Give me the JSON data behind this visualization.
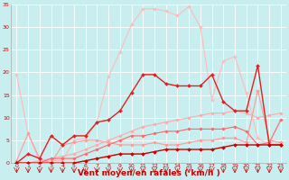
{
  "xlabel": "Vent moyen/en rafales ( km/h )",
  "bg_color": "#c8eef0",
  "grid_color": "#ffffff",
  "xlim": [
    -0.5,
    23.5
  ],
  "ylim": [
    0,
    35
  ],
  "yticks": [
    0,
    5,
    10,
    15,
    20,
    25,
    30,
    35
  ],
  "xticks": [
    0,
    1,
    2,
    3,
    4,
    5,
    6,
    7,
    8,
    9,
    10,
    11,
    12,
    13,
    14,
    15,
    16,
    17,
    18,
    19,
    20,
    21,
    22,
    23
  ],
  "tick_label_color": "#cc0000",
  "xlabel_color": "#cc0000",
  "tick_fontsize": 4.5,
  "xlabel_fontsize": 6.5,
  "lines": [
    {
      "x": [
        0,
        1,
        2,
        3,
        4,
        5,
        6,
        7,
        8,
        9,
        10,
        11,
        12,
        13,
        14,
        15,
        16,
        17,
        18,
        19,
        20,
        21,
        22,
        23
      ],
      "y": [
        19.5,
        6.5,
        0.5,
        0.5,
        0.5,
        5.0,
        5.5,
        9.0,
        19.0,
        24.5,
        30.5,
        34.0,
        34.0,
        33.5,
        32.5,
        34.5,
        30.0,
        14.0,
        22.5,
        23.5,
        15.5,
        5.5,
        4.0,
        4.5
      ],
      "color": "#ffbbbb",
      "lw": 0.8,
      "marker": "D",
      "ms": 1.8
    },
    {
      "x": [
        0,
        1,
        2,
        3,
        4,
        5,
        6,
        7,
        8,
        9,
        10,
        11,
        12,
        13,
        14,
        15,
        16,
        17,
        18,
        19,
        20,
        21,
        22,
        23
      ],
      "y": [
        0.5,
        6.5,
        1.0,
        0.0,
        4.0,
        4.5,
        5.0,
        5.0,
        4.5,
        4.0,
        4.0,
        4.0,
        4.5,
        4.0,
        4.0,
        4.5,
        5.0,
        5.0,
        5.5,
        5.5,
        4.5,
        16.0,
        5.0,
        4.5
      ],
      "color": "#ff9999",
      "lw": 0.8,
      "marker": "D",
      "ms": 1.8
    },
    {
      "x": [
        0,
        1,
        2,
        3,
        4,
        5,
        6,
        7,
        8,
        9,
        10,
        11,
        12,
        13,
        14,
        15,
        16,
        17,
        18,
        19,
        20,
        21,
        22,
        23
      ],
      "y": [
        0.0,
        0.0,
        0.5,
        1.0,
        1.5,
        2.0,
        3.0,
        4.0,
        5.0,
        6.0,
        7.0,
        8.0,
        8.5,
        9.0,
        9.5,
        10.0,
        10.5,
        11.0,
        11.0,
        11.5,
        11.0,
        10.0,
        10.5,
        11.0
      ],
      "color": "#ffaaaa",
      "lw": 0.8,
      "marker": "D",
      "ms": 1.8
    },
    {
      "x": [
        0,
        1,
        2,
        3,
        4,
        5,
        6,
        7,
        8,
        9,
        10,
        11,
        12,
        13,
        14,
        15,
        16,
        17,
        18,
        19,
        20,
        21,
        22,
        23
      ],
      "y": [
        0.0,
        0.0,
        0.0,
        1.0,
        1.0,
        1.0,
        2.0,
        3.0,
        4.0,
        5.0,
        6.0,
        6.0,
        6.5,
        7.0,
        7.0,
        7.5,
        7.5,
        7.5,
        7.5,
        8.0,
        7.0,
        4.0,
        4.5,
        9.5
      ],
      "color": "#ff6666",
      "lw": 0.8,
      "marker": "D",
      "ms": 1.8
    },
    {
      "x": [
        0,
        1,
        2,
        3,
        4,
        5,
        6,
        7,
        8,
        9,
        10,
        11,
        12,
        13,
        14,
        15,
        16,
        17,
        18,
        19,
        20,
        21,
        22,
        23
      ],
      "y": [
        0.0,
        2.0,
        1.0,
        6.0,
        4.0,
        6.0,
        6.0,
        9.0,
        9.5,
        11.5,
        15.5,
        19.5,
        19.5,
        17.5,
        17.0,
        17.0,
        17.0,
        19.5,
        13.5,
        11.5,
        11.5,
        21.5,
        4.0,
        4.0
      ],
      "color": "#dd2222",
      "lw": 1.0,
      "marker": "D",
      "ms": 2.0
    },
    {
      "x": [
        0,
        1,
        2,
        3,
        4,
        5,
        6,
        7,
        8,
        9,
        10,
        11,
        12,
        13,
        14,
        15,
        16,
        17,
        18,
        19,
        20,
        21,
        22,
        23
      ],
      "y": [
        0.0,
        0.0,
        0.0,
        0.0,
        0.0,
        0.0,
        0.5,
        1.0,
        1.5,
        2.0,
        2.0,
        2.0,
        2.5,
        3.0,
        3.0,
        3.0,
        3.0,
        3.0,
        3.5,
        4.0,
        4.0,
        4.0,
        4.0,
        4.0
      ],
      "color": "#cc0000",
      "lw": 1.0,
      "marker": "D",
      "ms": 2.0
    }
  ]
}
